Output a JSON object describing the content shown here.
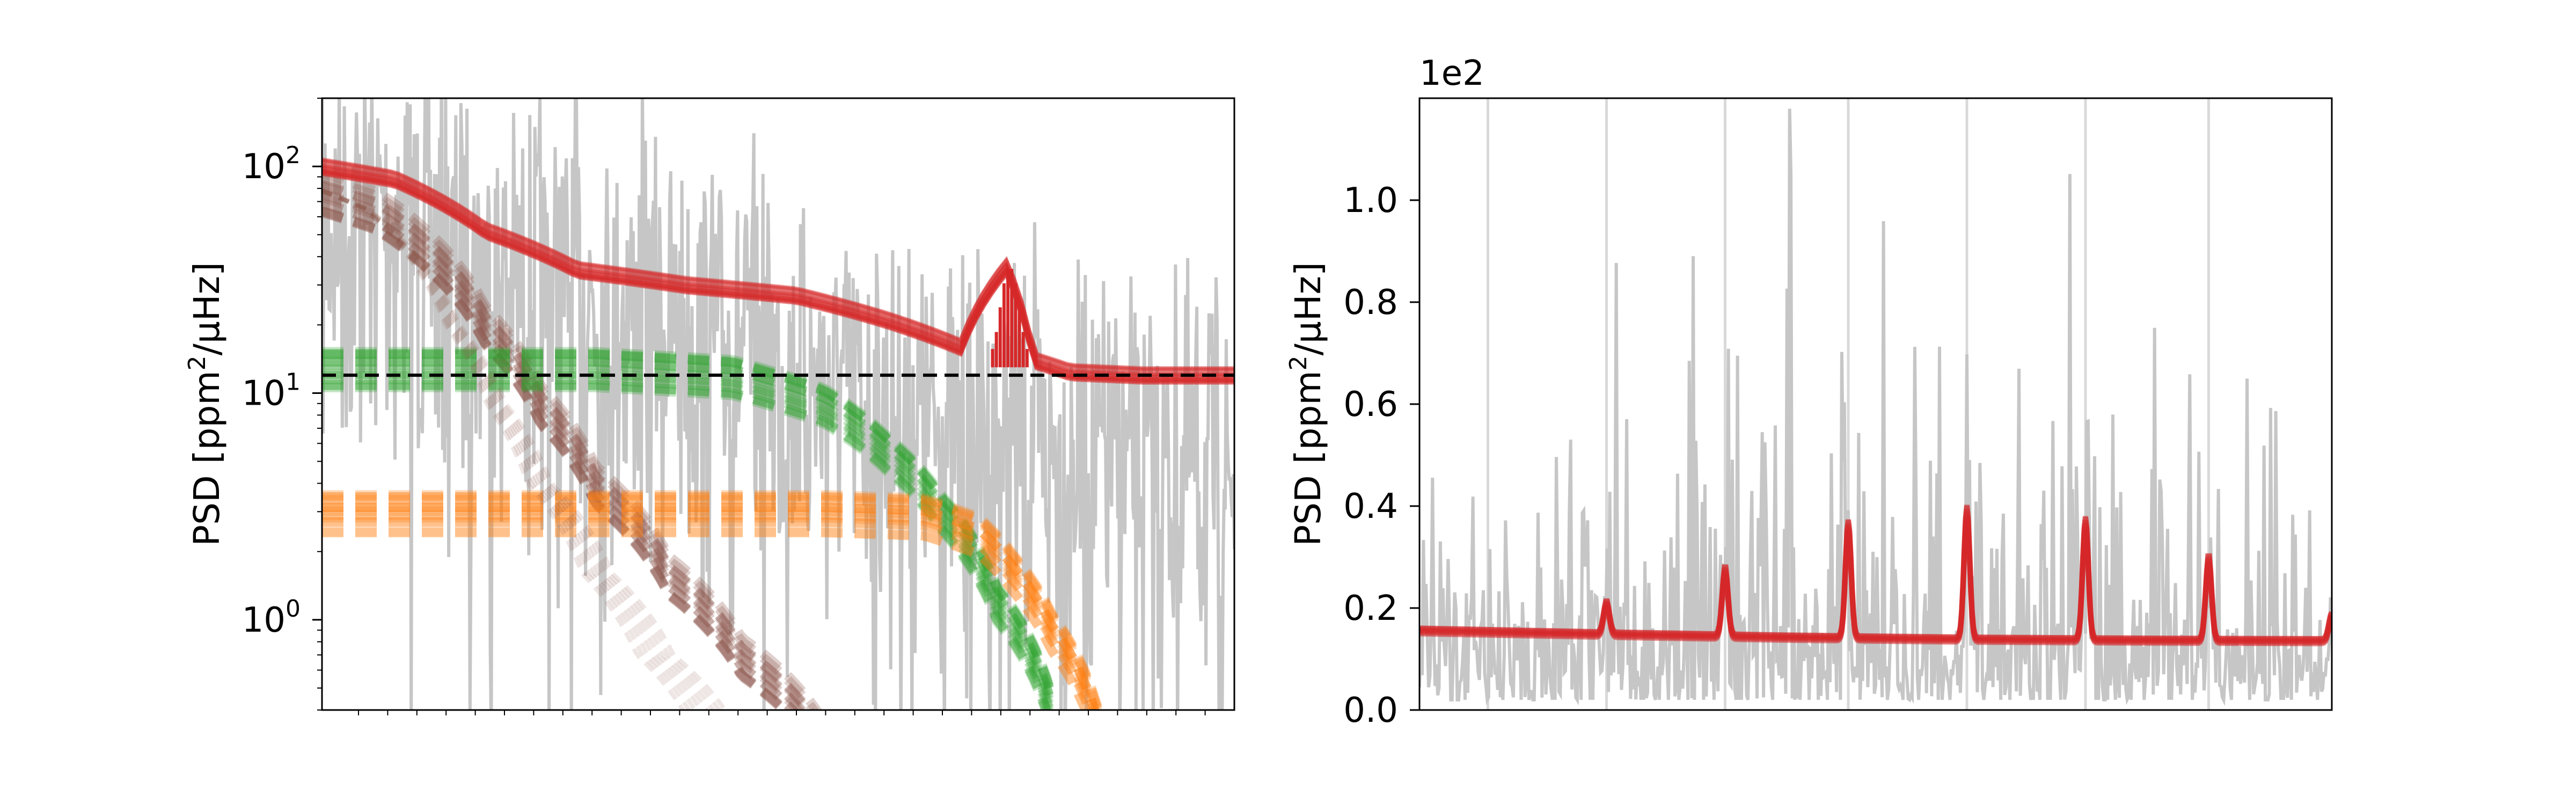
{
  "chart_data": [
    {
      "type": "line",
      "ylabel": "PSD [ppm$^2$/$\\mu$Hz]",
      "ylabel_parts": [
        "PSD [ppm",
        "2",
        "/μHz]"
      ],
      "yscale": "log",
      "xscale": "log",
      "ylim": [
        0.4,
        200
      ],
      "yticks": [
        {
          "value": 100,
          "base": "10",
          "exp": "2"
        },
        {
          "value": 10,
          "base": "10",
          "exp": "1"
        },
        {
          "value": 1,
          "base": "10",
          "exp": "0"
        }
      ],
      "xtick_labels_shown": false,
      "grid": false,
      "series": [
        {
          "role": "power spectrum",
          "color": "#c6c6c6",
          "style": "solid",
          "x_frac": [
            0.0,
            0.05,
            0.1,
            0.15,
            0.2,
            0.3,
            0.4,
            0.5,
            0.6,
            0.7,
            0.8,
            0.9,
            1.0
          ],
          "values": [
            50,
            60,
            45,
            35,
            30,
            25,
            18,
            12,
            8,
            6,
            5,
            4,
            4
          ]
        },
        {
          "role": "full model draws",
          "color": "#d62728",
          "style": "solid",
          "x_frac": [
            0.0,
            0.08,
            0.18,
            0.28,
            0.4,
            0.52,
            0.62,
            0.7,
            0.75,
            0.78,
            0.82,
            0.9,
            1.0
          ],
          "values": [
            100,
            88,
            52,
            35,
            30,
            27,
            21,
            16,
            36,
            14,
            12.4,
            12,
            12
          ]
        },
        {
          "role": "white noise level",
          "color": "#000000",
          "style": "dashed",
          "x_frac": [
            0.0,
            1.0
          ],
          "values": [
            12,
            12
          ]
        },
        {
          "role": "granulation component 1",
          "color": "#8c564b",
          "style": "dashed",
          "x_frac": [
            0.0,
            0.06,
            0.12,
            0.18,
            0.24,
            0.3,
            0.38,
            0.46,
            0.55
          ],
          "values": [
            78,
            65,
            42,
            20,
            9,
            4,
            1.6,
            0.7,
            0.3
          ]
        },
        {
          "role": "granulation component 2",
          "color": "#2ca02c",
          "style": "dashed",
          "x_frac": [
            0.0,
            0.3,
            0.45,
            0.55,
            0.62,
            0.68,
            0.74,
            0.8
          ],
          "values": [
            13,
            13,
            12,
            9,
            5.5,
            3,
            1.2,
            0.4
          ]
        },
        {
          "role": "granulation component 3",
          "color": "#ff7f0e",
          "style": "dashed",
          "x_frac": [
            0.0,
            0.55,
            0.66,
            0.72,
            0.76,
            0.8,
            0.85
          ],
          "values": [
            3,
            3,
            2.9,
            2.4,
            1.6,
            0.9,
            0.35
          ]
        }
      ]
    },
    {
      "type": "line",
      "ylabel": "PSD [ppm$^2$/$\\mu$Hz]",
      "ylabel_parts": [
        "PSD [ppm",
        "2",
        "/μHz]"
      ],
      "offset_text": "1e2",
      "ylim": [
        0.0,
        1.2
      ],
      "yticks": [
        "0.0",
        "0.2",
        "0.4",
        "0.6",
        "0.8",
        "1.0"
      ],
      "ytick_values": [
        0.0,
        0.2,
        0.4,
        0.6,
        0.8,
        1.0
      ],
      "xtick_labels_shown": false,
      "grid": false,
      "series": [
        {
          "role": "power spectrum",
          "color": "#c6c6c6",
          "style": "solid",
          "x_frac": [
            0.0,
            0.2,
            0.4,
            0.6,
            0.8,
            1.0
          ],
          "values": [
            0.15,
            0.16,
            0.18,
            0.17,
            0.16,
            0.15
          ]
        },
        {
          "role": "model draws",
          "color": "#d62728",
          "style": "solid",
          "x_frac": [
            0.0,
            0.2,
            0.4,
            0.6,
            0.8,
            1.0
          ],
          "values": [
            0.155,
            0.148,
            0.142,
            0.138,
            0.136,
            0.135
          ]
        }
      ],
      "peaks": [
        {
          "x_frac": 0.205,
          "height": 0.2
        },
        {
          "x_frac": 0.335,
          "height": 0.27
        },
        {
          "x_frac": 0.47,
          "height": 0.36
        },
        {
          "x_frac": 0.6,
          "height": 0.39
        },
        {
          "x_frac": 0.73,
          "height": 0.37
        },
        {
          "x_frac": 0.865,
          "height": 0.3
        },
        {
          "x_frac": 1.0,
          "height": 0.19
        }
      ],
      "vlines_x_frac": [
        0.075,
        0.205,
        0.335,
        0.47,
        0.6,
        0.73,
        0.865
      ]
    }
  ]
}
